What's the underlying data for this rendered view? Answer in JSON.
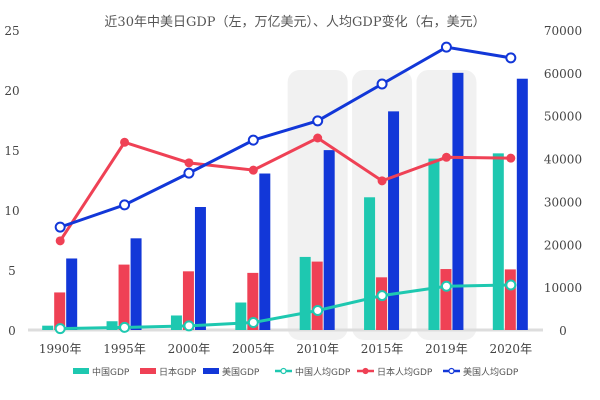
{
  "chart_data": {
    "type": "bar+line",
    "title": "近30年中美日GDP（左，万亿美元）、人均GDP变化（右，美元）",
    "categories": [
      "1990年",
      "1995年",
      "2000年",
      "2005年",
      "2010年",
      "2015年",
      "2019年",
      "2020年"
    ],
    "y_left": {
      "ylim": [
        0,
        25
      ],
      "ticks": [
        "0",
        "5",
        "10",
        "15",
        "20",
        "25"
      ]
    },
    "y_right": {
      "ylim": [
        0,
        70000
      ],
      "ticks": [
        "0",
        "10000",
        "20000",
        "30000",
        "40000",
        "50000",
        "60000",
        "70000"
      ]
    },
    "legend_position": "bottom",
    "grid": false,
    "bar_series": [
      {
        "name": "中国GDP",
        "color": "#1ec8b0",
        "values": [
          0.36,
          0.73,
          1.21,
          2.29,
          6.09,
          11.06,
          14.28,
          14.72
        ]
      },
      {
        "name": "日本GDP",
        "color": "#ef4155",
        "values": [
          3.13,
          5.45,
          4.89,
          4.76,
          5.7,
          4.39,
          5.08,
          5.05
        ]
      },
      {
        "name": "美国GDP",
        "color": "#1237d8",
        "values": [
          5.96,
          7.64,
          10.25,
          13.04,
          14.99,
          18.22,
          21.43,
          20.94
        ]
      }
    ],
    "line_series": [
      {
        "name": "中国人均GDP",
        "color": "#1ec8b0",
        "axis": "right",
        "values": [
          317,
          610,
          959,
          1753,
          4550,
          8030,
          10200,
          10500
        ]
      },
      {
        "name": "日本人均GDP",
        "color": "#ef4155",
        "axis": "right",
        "values": [
          20800,
          43800,
          39000,
          37300,
          44800,
          34800,
          40300,
          40100
        ]
      },
      {
        "name": "美国人均GDP",
        "color": "#1237d8",
        "axis": "right",
        "values": [
          24000,
          29200,
          36600,
          44300,
          48800,
          57400,
          66000,
          63500
        ]
      }
    ]
  }
}
